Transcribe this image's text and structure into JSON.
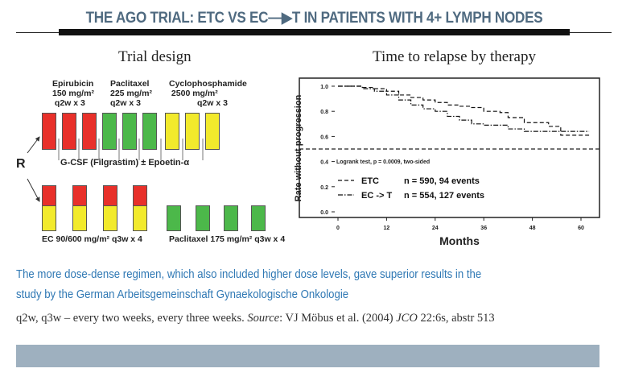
{
  "header": {
    "title": "THE AGO TRIAL: ETC VS EC—▶T IN PATIENTS WITH 4+ LYMPH NODES"
  },
  "left_panel": {
    "subtitle": "Trial design",
    "drugs": [
      {
        "name": "Epirubicin",
        "dose": "150 mg/m²",
        "schedule": "q2w x 3",
        "color": "#e8302a"
      },
      {
        "name": "Paclitaxel",
        "dose": "225 mg/m²",
        "schedule": "q2w x 3",
        "color": "#4cb84a"
      },
      {
        "name": "Cyclophosphamide",
        "dose": "2500 mg/m²",
        "schedule": "q2w x 3",
        "color": "#f2ea2c"
      }
    ],
    "randomization": "R",
    "support": "G-CSF (Filgrastim) ± Epoetin-α",
    "arm2_ec": "EC 90/600 mg/m² q3w x 4",
    "arm2_t": "Paclitaxel 175 mg/m² q3w x 4"
  },
  "right_panel": {
    "subtitle": "Time to relapse by therapy"
  },
  "chart_data": {
    "type": "line",
    "title": "Time to relapse by therapy",
    "xlabel": "Months",
    "ylabel": "Rate without progression",
    "xlim": [
      0,
      63
    ],
    "ylim": [
      0,
      1.05
    ],
    "xticks": [
      "0",
      "12",
      "24",
      "36",
      "48",
      "60"
    ],
    "yticks": [
      "0.0",
      "0.2",
      "0.4",
      "0.6",
      "0.8",
      "1.0"
    ],
    "reference_line": 0.5,
    "annotation": "Logrank test, p = 0.0009, two-sided",
    "series": [
      {
        "name": "ETC",
        "legend": "n = 590,   94 events",
        "style": "dashed",
        "x": [
          0,
          6,
          9,
          12,
          15,
          18,
          21,
          24,
          27,
          30,
          33,
          36,
          40,
          42,
          46,
          52,
          55,
          62
        ],
        "y": [
          1,
          0.99,
          0.98,
          0.96,
          0.93,
          0.91,
          0.89,
          0.87,
          0.85,
          0.84,
          0.83,
          0.8,
          0.79,
          0.75,
          0.71,
          0.68,
          0.61,
          0.61
        ]
      },
      {
        "name": "EC -> T",
        "legend": "n = 554, 127 events",
        "style": "dashdot",
        "x": [
          0,
          6,
          9,
          12,
          15,
          18,
          21,
          24,
          27,
          30,
          33,
          36,
          40,
          42,
          46,
          62
        ],
        "y": [
          1,
          0.98,
          0.96,
          0.93,
          0.89,
          0.85,
          0.82,
          0.8,
          0.76,
          0.73,
          0.7,
          0.69,
          0.69,
          0.66,
          0.64,
          0.64
        ]
      }
    ]
  },
  "caption": {
    "line1": "The more dose-dense regimen, which also included higher dose levels, gave superior results in the",
    "line2": "study by the German Arbeitsgemeinschaft Gynaekologische Onkologie"
  },
  "source": {
    "prefix": "q2w, q3w – every two weeks, every three weeks.  ",
    "label": "Source",
    "author": ": VJ Möbus et al. (2004) ",
    "journal": "JCO",
    "ref": " 22:6s, abstr 513"
  }
}
